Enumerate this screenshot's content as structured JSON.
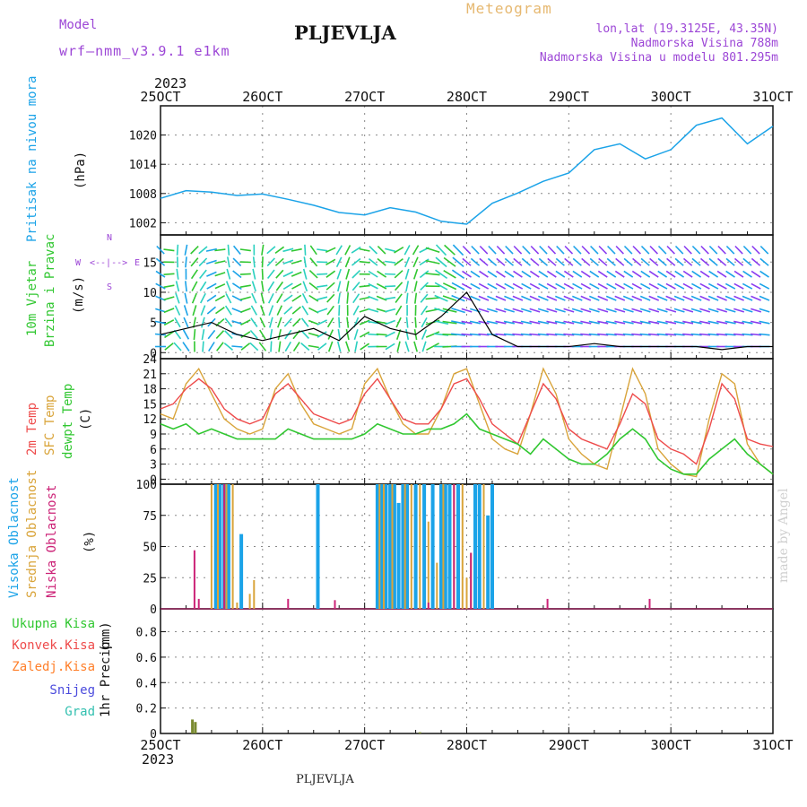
{
  "header": {
    "model_label": "Model",
    "model_name": "wrf—nmm_v3.9.1  e1km",
    "station": "PLJEVLJA",
    "product": "Meteogram",
    "lonlat": "lon,lat (19.3125E, 43.35N)",
    "elevation": "Nadmorska Visina 788m",
    "model_elevation": "Nadmorska Visina u modelu 801.295m",
    "year_top": "2023",
    "year_bottom": "2023",
    "footer_station": "PLJEVLJA",
    "credit": "made by Angel"
  },
  "colors": {
    "pressure": "#1ba3e8",
    "temp2m": "#ee4b4b",
    "sfc": "#d9a43a",
    "dew": "#31c731",
    "high_cloud": "#1ba3e8",
    "mid_cloud": "#d9a43a",
    "low_cloud": "#cc2277",
    "total_precip": "#31c731",
    "conv": "#ee4b4b",
    "frz": "#ff7f2a",
    "snow": "#4b4bdd",
    "grad": "#33c0b0",
    "header_purple": "#9c46d6",
    "header_gold": "#e6b870"
  },
  "chart_data": [
    {
      "type": "line",
      "panel": "pressure",
      "ylabel": [
        "Pritisak na nivou mora",
        "(hPa)"
      ],
      "yticks": [
        1002,
        1008,
        1014,
        1020
      ],
      "ylim": [
        999.5,
        1026
      ],
      "xticks": [
        "25OCT",
        "26OCT",
        "27OCT",
        "28OCT",
        "29OCT",
        "30OCT",
        "31OCT"
      ],
      "x_hours": [
        0,
        6,
        12,
        18,
        24,
        30,
        36,
        42,
        48,
        54,
        60,
        66,
        72,
        78,
        84,
        90,
        96,
        102,
        108,
        114,
        120,
        126,
        132,
        138,
        144
      ],
      "series": [
        {
          "name": "Pritisak na nivou mora",
          "values": [
            1007,
            1008.6,
            1008.3,
            1007.6,
            1007.9,
            1006.8,
            1005.6,
            1004.1,
            1003.6,
            1005.1,
            1004.2,
            1002.3,
            1001.7,
            1006,
            1008.1,
            1010.5,
            1012.2,
            1017,
            1018.2,
            1015.1,
            1017,
            1022,
            1023.5,
            1018.2,
            1021.8
          ]
        }
      ],
      "grid": true
    },
    {
      "type": "line",
      "panel": "wind",
      "ylabel": [
        "10m Vjetar",
        "Brzina i Pravac",
        "(m/s)"
      ],
      "yticks": [
        0,
        5,
        10,
        15
      ],
      "ylim": [
        -1,
        19.5
      ],
      "compass_labels": {
        "north": "N",
        "south": "S",
        "west": "W",
        "east": "E",
        "arrow": "<--|-->"
      },
      "x_hours": [
        0,
        6,
        12,
        18,
        24,
        30,
        36,
        42,
        48,
        54,
        60,
        66,
        72,
        78,
        84,
        90,
        96,
        102,
        108,
        114,
        120,
        126,
        132,
        138,
        144
      ],
      "series": [
        {
          "name": "speed",
          "values": [
            3,
            4,
            5,
            3,
            2,
            3,
            4,
            2,
            6,
            4,
            3,
            6,
            10,
            3,
            1,
            1,
            1,
            1.5,
            1,
            1,
            1,
            1,
            0.5,
            1,
            1
          ]
        }
      ],
      "grid": true
    },
    {
      "type": "line",
      "panel": "temperature",
      "ylabel": [
        "2m Temp",
        "SFC Temp",
        "dewpt Temp",
        "(C)"
      ],
      "yticks": [
        0,
        3,
        6,
        9,
        12,
        15,
        18,
        21,
        24
      ],
      "ylim": [
        -1,
        24
      ],
      "x_hours": [
        0,
        3,
        6,
        9,
        12,
        15,
        18,
        21,
        24,
        27,
        30,
        33,
        36,
        39,
        42,
        45,
        48,
        51,
        54,
        57,
        60,
        63,
        66,
        69,
        72,
        75,
        78,
        81,
        84,
        87,
        90,
        93,
        96,
        99,
        102,
        105,
        108,
        111,
        114,
        117,
        120,
        123,
        126,
        129,
        132,
        135,
        138,
        141,
        144
      ],
      "series": [
        {
          "name": "2m Temp",
          "values": [
            14,
            15,
            18,
            20,
            18,
            14,
            12,
            11,
            12,
            17,
            19,
            16,
            13,
            12,
            11,
            12,
            17,
            20,
            16,
            12,
            11,
            11,
            14,
            19,
            20,
            16,
            11,
            9,
            7,
            13,
            19,
            16,
            10,
            8,
            7,
            6,
            11,
            17,
            15,
            8,
            6,
            5,
            3,
            10,
            19,
            16,
            8,
            7,
            6.5
          ]
        },
        {
          "name": "SFC Temp",
          "values": [
            13,
            12,
            19,
            22,
            17,
            12,
            10,
            9,
            10,
            18,
            21,
            15,
            11,
            10,
            9,
            10,
            19,
            22,
            16,
            11,
            9,
            9,
            14,
            21,
            22,
            15,
            8,
            6,
            5,
            13,
            22,
            17,
            8,
            5,
            3,
            2,
            12,
            22,
            17,
            6,
            3,
            1,
            0.5,
            12,
            21,
            19,
            7,
            3,
            1
          ]
        },
        {
          "name": "dewpt Temp",
          "values": [
            11,
            10,
            11,
            9,
            10,
            9,
            8,
            8,
            8,
            8,
            10,
            9,
            8,
            8,
            8,
            8,
            9,
            11,
            10,
            9,
            9,
            10,
            10,
            11,
            13,
            10,
            9,
            8,
            7,
            5,
            8,
            6,
            4,
            3,
            3,
            5,
            8,
            10,
            8,
            4,
            2,
            1,
            1,
            4,
            6,
            8,
            5,
            3,
            1
          ]
        }
      ],
      "grid": true
    },
    {
      "type": "bar",
      "panel": "clouds",
      "ylabel": [
        "Visoka Oblacnost",
        "Srednja Oblacnost",
        "Niska Oblacnost",
        "(%)"
      ],
      "yticks": [
        0,
        25,
        50,
        75,
        100
      ],
      "ylim": [
        0,
        100
      ],
      "series": [
        {
          "name": "Visoka Oblacnost",
          "bars": [
            [
              13,
              100
            ],
            [
              14,
              100
            ],
            [
              15,
              100
            ],
            [
              16,
              100
            ],
            [
              19,
              60
            ],
            [
              37,
              100
            ],
            [
              51,
              100
            ],
            [
              52,
              100
            ],
            [
              53,
              100
            ],
            [
              54,
              100
            ],
            [
              55,
              100
            ],
            [
              56,
              85
            ],
            [
              57,
              100
            ],
            [
              58,
              100
            ],
            [
              60,
              100
            ],
            [
              62,
              100
            ],
            [
              64,
              100
            ],
            [
              66,
              100
            ],
            [
              67,
              100
            ],
            [
              68,
              100
            ],
            [
              70,
              100
            ],
            [
              74,
              100
            ],
            [
              75,
              100
            ],
            [
              77,
              75
            ],
            [
              78,
              100
            ]
          ]
        },
        {
          "name": "Srednja Oblacnost",
          "bars": [
            [
              12,
              100
            ],
            [
              13.5,
              100
            ],
            [
              15.5,
              100
            ],
            [
              17,
              100
            ],
            [
              18,
              5
            ],
            [
              21,
              12
            ],
            [
              22,
              23
            ],
            [
              51.5,
              100
            ],
            [
              52.5,
              100
            ],
            [
              54.5,
              100
            ],
            [
              57.5,
              100
            ],
            [
              59,
              100
            ],
            [
              61,
              100
            ],
            [
              63,
              70
            ],
            [
              65,
              37
            ],
            [
              66.5,
              100
            ],
            [
              69,
              100
            ],
            [
              71,
              100
            ],
            [
              72,
              25
            ],
            [
              73,
              45
            ],
            [
              76,
              100
            ]
          ]
        },
        {
          "name": "Niska Oblacnost",
          "bars": [
            [
              8,
              47
            ],
            [
              9,
              8
            ],
            [
              15,
              100
            ],
            [
              30,
              8
            ],
            [
              41,
              7
            ],
            [
              63,
              5
            ],
            [
              69,
              100
            ],
            [
              73,
              45
            ],
            [
              91,
              8
            ],
            [
              115,
              8
            ]
          ]
        }
      ],
      "grid": true
    },
    {
      "type": "bar",
      "panel": "precipitation",
      "ylabel": [
        "1hr Precip",
        "(mm)"
      ],
      "legend": [
        "Ukupna Kisa",
        "Konvek.Kisa",
        "Zaledj.Kisa",
        "Snijeg",
        "Grad"
      ],
      "yticks": [
        0,
        0.2,
        0.4,
        0.6,
        0.8
      ],
      "ylim": [
        0,
        0.98
      ],
      "series": [
        {
          "name": "Ukupna Kisa",
          "bars": [
            [
              7.5,
              0.11
            ],
            [
              8.2,
              0.09
            ],
            [
              61,
              0.01
            ]
          ]
        }
      ],
      "grid": true
    }
  ]
}
